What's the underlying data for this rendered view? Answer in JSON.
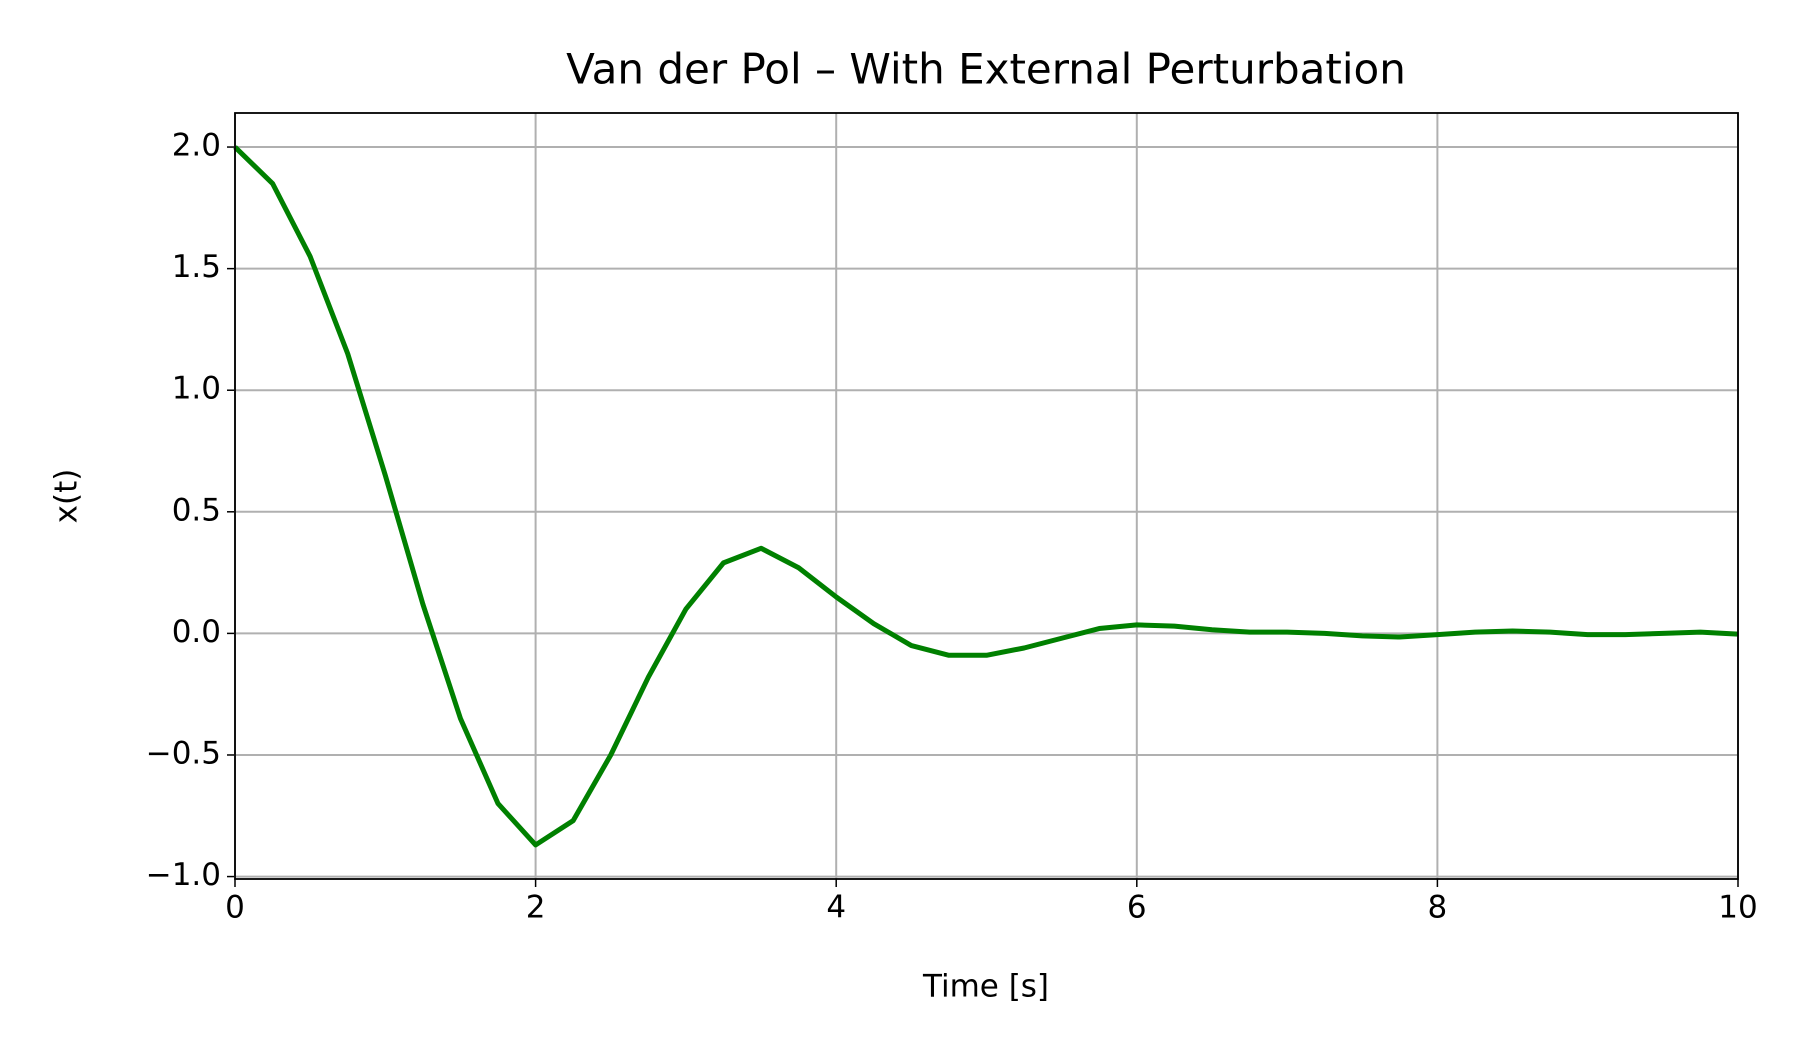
{
  "chart_data": {
    "type": "line",
    "title": "Van der Pol – With External Perturbation",
    "xlabel": "Time [s]",
    "ylabel": "x(t)",
    "x": [
      0,
      0.25,
      0.5,
      0.75,
      1.0,
      1.25,
      1.5,
      1.75,
      2.0,
      2.25,
      2.5,
      2.75,
      3.0,
      3.25,
      3.5,
      3.75,
      4.0,
      4.25,
      4.5,
      4.75,
      5.0,
      5.25,
      5.5,
      5.75,
      6.0,
      6.25,
      6.5,
      6.75,
      7.0,
      7.25,
      7.5,
      7.75,
      8.0,
      8.25,
      8.5,
      8.75,
      9.0,
      9.25,
      9.5,
      9.75,
      10.0
    ],
    "series": [
      {
        "name": "x(t)",
        "color": "#008000",
        "values": [
          2.0,
          1.85,
          1.55,
          1.15,
          0.65,
          0.12,
          -0.35,
          -0.7,
          -0.87,
          -0.77,
          -0.5,
          -0.18,
          0.1,
          0.29,
          0.35,
          0.27,
          0.15,
          0.04,
          -0.05,
          -0.09,
          -0.09,
          -0.06,
          -0.02,
          0.02,
          0.035,
          0.03,
          0.015,
          0.005,
          0.005,
          0.0,
          -0.01,
          -0.015,
          -0.005,
          0.005,
          0.01,
          0.005,
          -0.005,
          -0.005,
          0.0,
          0.005,
          -0.003
        ]
      }
    ],
    "xlim": [
      0,
      10
    ],
    "xticks": [
      0,
      2,
      4,
      6,
      8,
      10
    ],
    "ylim": [
      -1.01,
      2.14
    ],
    "yticks": [
      {
        "value": -1.0,
        "label": "−1.0"
      },
      {
        "value": -0.5,
        "label": "−0.5"
      },
      {
        "value": 0,
        "label": "0.0"
      },
      0.5,
      {
        "value": 1,
        "label": "1.0"
      },
      1.5,
      {
        "value": 2,
        "label": "2.0"
      }
    ],
    "grid": true
  }
}
